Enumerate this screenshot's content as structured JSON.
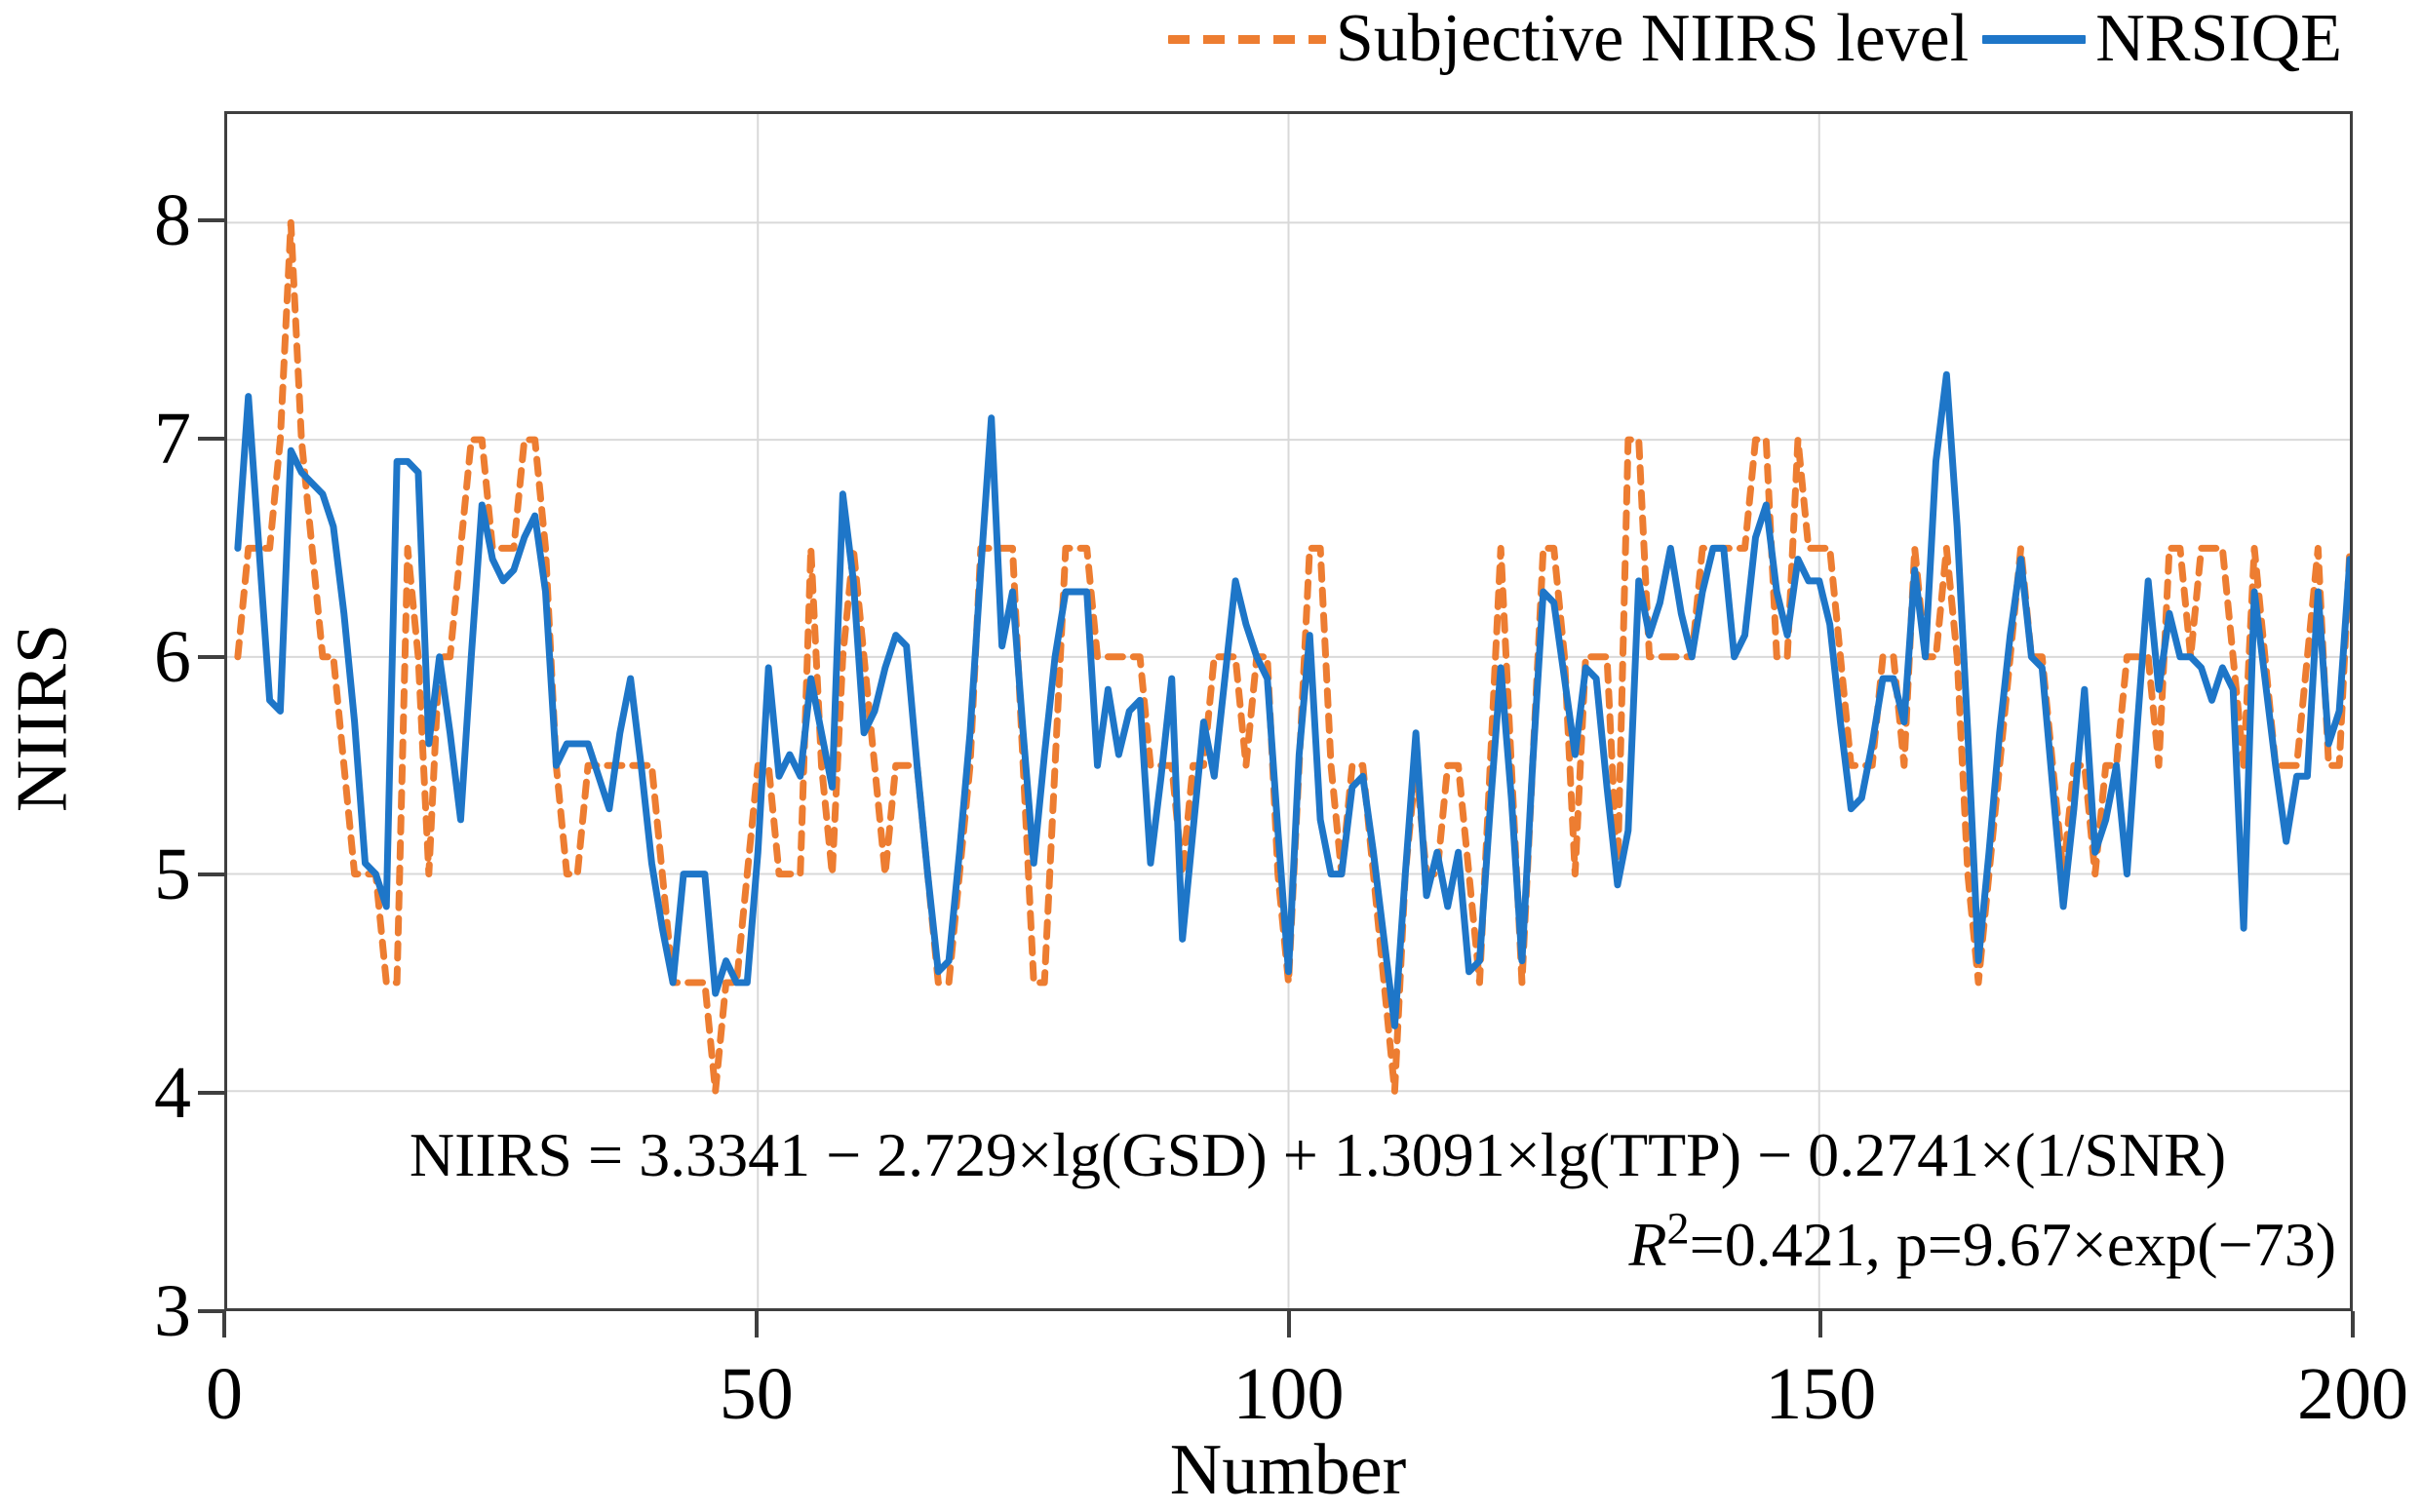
{
  "legend": {
    "items": [
      {
        "label": "Subjective NIIRS level",
        "color": "#ED7D31",
        "style": "dashed"
      },
      {
        "label": "NRSIQE",
        "color": "#1E76C8",
        "style": "solid"
      }
    ]
  },
  "axes": {
    "y_label": "NIIRS",
    "x_label": "Number",
    "y_ticks": [
      3,
      4,
      5,
      6,
      7,
      8
    ],
    "x_ticks": [
      0,
      50,
      100,
      150,
      200
    ]
  },
  "annotation": {
    "line1": "NIIRS = 3.3341 − 2.729×lg(GSD) + 1.3091×lg(TTP) − 0.2741×(1/SNR)",
    "r_label": "R",
    "r_sup": "2",
    "line2_rest": "=0.421,  p=9.67×exp(−73)"
  },
  "style": {
    "grid_color": "#d9d9d9",
    "border_color": "#3f3f3f",
    "background": "#ffffff"
  },
  "chart_data": {
    "type": "line",
    "title": "",
    "xlabel": "Number",
    "ylabel": "NIIRS",
    "xlim": [
      0,
      200
    ],
    "ylim": [
      3,
      8.5
    ],
    "x_gridlines": [
      50,
      100,
      150
    ],
    "y_gridlines": [
      4,
      5,
      6,
      7,
      8
    ],
    "grid": true,
    "legend_position": "top-right",
    "x_start": 1,
    "series": [
      {
        "name": "Subjective NIIRS level",
        "color": "#ED7D31",
        "dash": true,
        "values": [
          6.0,
          6.5,
          6.5,
          6.5,
          7.0,
          8.0,
          7.0,
          6.5,
          6.0,
          6.0,
          5.5,
          5.0,
          5.0,
          5.0,
          4.5,
          4.5,
          6.5,
          6.0,
          5.0,
          6.0,
          6.0,
          6.5,
          7.0,
          7.0,
          6.5,
          6.5,
          6.5,
          7.0,
          7.0,
          6.5,
          5.5,
          5.0,
          5.0,
          5.5,
          5.5,
          5.5,
          5.5,
          5.5,
          5.5,
          5.5,
          5.0,
          4.5,
          4.5,
          4.5,
          4.5,
          4.0,
          4.5,
          4.5,
          5.0,
          5.5,
          5.5,
          5.0,
          5.0,
          5.0,
          6.5,
          5.5,
          5.0,
          6.0,
          6.5,
          6.0,
          5.5,
          5.0,
          5.5,
          5.5,
          5.5,
          5.0,
          4.5,
          4.5,
          5.0,
          5.5,
          6.5,
          6.5,
          6.5,
          6.5,
          5.5,
          4.5,
          4.5,
          5.5,
          6.5,
          6.5,
          6.5,
          6.0,
          6.0,
          6.0,
          6.0,
          6.0,
          5.5,
          5.5,
          5.5,
          5.0,
          5.5,
          5.5,
          6.0,
          6.0,
          6.0,
          5.5,
          6.0,
          6.0,
          5.0,
          4.5,
          5.5,
          6.5,
          6.5,
          5.5,
          5.0,
          5.5,
          5.5,
          5.0,
          4.5,
          4.0,
          5.0,
          5.5,
          5.0,
          5.0,
          5.5,
          5.5,
          5.0,
          4.5,
          5.5,
          6.5,
          5.5,
          4.5,
          5.5,
          6.5,
          6.5,
          6.0,
          5.0,
          6.0,
          6.0,
          6.0,
          5.0,
          7.0,
          7.0,
          6.0,
          6.0,
          6.0,
          6.0,
          6.0,
          6.5,
          6.5,
          6.5,
          6.5,
          6.5,
          7.0,
          7.0,
          6.0,
          6.0,
          7.0,
          6.5,
          6.5,
          6.5,
          6.0,
          5.5,
          5.5,
          5.5,
          6.0,
          6.0,
          5.5,
          6.5,
          6.0,
          6.0,
          6.5,
          6.0,
          5.0,
          4.5,
          5.0,
          5.5,
          6.0,
          6.5,
          6.0,
          6.0,
          5.5,
          5.0,
          5.5,
          5.5,
          5.0,
          5.5,
          5.5,
          6.0,
          6.0,
          6.0,
          5.5,
          6.5,
          6.5,
          6.0,
          6.5,
          6.5,
          6.5,
          6.0,
          5.5,
          6.5,
          6.0,
          5.5,
          5.5,
          5.5,
          6.0,
          6.5,
          5.5,
          5.5,
          6.5
        ]
      },
      {
        "name": "NRSIQE",
        "color": "#1E76C8",
        "dash": false,
        "values": [
          6.5,
          7.2,
          6.5,
          5.8,
          5.75,
          6.95,
          6.85,
          6.8,
          6.75,
          6.6,
          6.2,
          5.7,
          5.05,
          5.0,
          4.85,
          6.9,
          6.9,
          6.85,
          5.6,
          6.0,
          5.65,
          5.25,
          6.0,
          6.7,
          6.45,
          6.35,
          6.4,
          6.55,
          6.65,
          6.3,
          5.5,
          5.6,
          5.6,
          5.6,
          5.45,
          5.3,
          5.65,
          5.9,
          5.5,
          5.05,
          4.75,
          4.5,
          5.0,
          5.0,
          5.0,
          4.45,
          4.6,
          4.5,
          4.5,
          5.1,
          5.95,
          5.45,
          5.55,
          5.45,
          5.9,
          5.65,
          5.4,
          6.75,
          6.35,
          5.65,
          5.75,
          5.95,
          6.1,
          6.05,
          5.5,
          5.0,
          4.55,
          4.6,
          5.1,
          5.65,
          6.4,
          7.1,
          6.05,
          6.3,
          5.65,
          5.05,
          5.55,
          6.0,
          6.3,
          6.3,
          6.3,
          5.5,
          5.85,
          5.55,
          5.75,
          5.8,
          5.05,
          5.45,
          5.9,
          4.7,
          5.2,
          5.7,
          5.45,
          5.9,
          6.35,
          6.15,
          6.0,
          5.9,
          5.2,
          4.55,
          5.55,
          6.1,
          5.25,
          5.0,
          5.0,
          5.4,
          5.45,
          5.1,
          4.7,
          4.3,
          5.0,
          5.65,
          4.9,
          5.1,
          4.85,
          5.1,
          4.55,
          4.6,
          5.3,
          5.95,
          5.35,
          4.6,
          5.5,
          6.3,
          6.25,
          5.9,
          5.55,
          5.95,
          5.9,
          5.4,
          4.95,
          5.2,
          6.35,
          6.1,
          6.25,
          6.5,
          6.2,
          6.0,
          6.3,
          6.5,
          6.5,
          6.0,
          6.1,
          6.55,
          6.7,
          6.3,
          6.1,
          6.45,
          6.35,
          6.35,
          6.15,
          5.7,
          5.3,
          5.35,
          5.6,
          5.9,
          5.9,
          5.7,
          6.4,
          6.0,
          6.9,
          7.3,
          6.6,
          5.65,
          4.6,
          5.1,
          5.65,
          6.1,
          6.45,
          6.0,
          5.95,
          5.4,
          4.85,
          5.3,
          5.85,
          5.1,
          5.25,
          5.5,
          5.0,
          5.7,
          6.35,
          5.85,
          6.2,
          6.0,
          6.0,
          5.95,
          5.8,
          5.95,
          5.85,
          4.75,
          6.3,
          5.9,
          5.5,
          5.15,
          5.45,
          5.45,
          6.3,
          5.6,
          5.75,
          6.45
        ]
      }
    ]
  }
}
